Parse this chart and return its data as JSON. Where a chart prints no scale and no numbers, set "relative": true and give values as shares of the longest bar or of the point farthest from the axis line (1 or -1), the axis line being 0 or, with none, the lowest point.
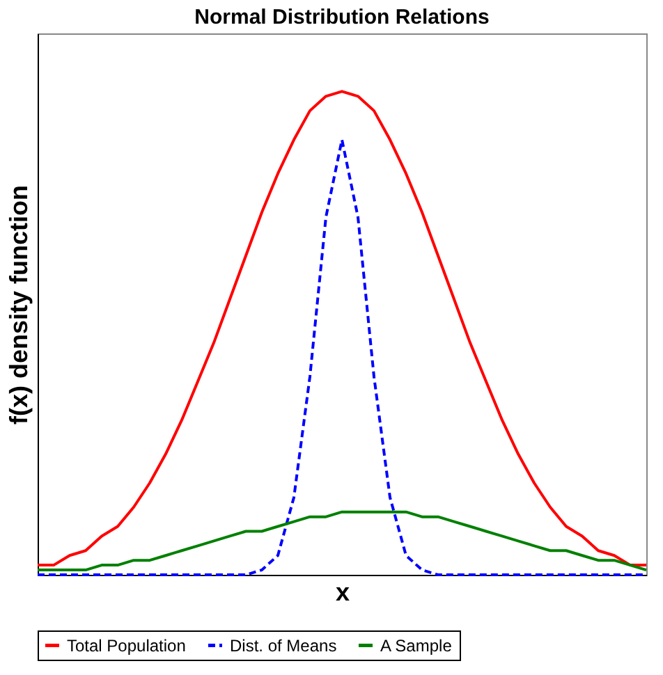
{
  "chart_data": {
    "type": "line",
    "title": "Normal Distribution Relations",
    "xlabel": "x",
    "ylabel": "f(x) density function",
    "relative": true,
    "grid": false,
    "legend": "bottom",
    "marker": "none",
    "line_style": "solid",
    "categories": [
      null,
      null,
      null,
      null,
      null,
      null,
      null,
      null,
      null,
      null,
      null,
      null,
      null,
      null,
      null,
      null,
      null,
      null,
      null,
      null,
      null,
      null,
      null,
      null,
      null,
      null,
      null,
      null,
      null,
      null,
      null,
      null,
      null,
      null,
      null,
      null,
      null,
      null,
      null
    ],
    "series": [
      {
        "name": "Total Population",
        "color": "#ff0000",
        "values": [
          0.02,
          0.02,
          0.04,
          0.05,
          0.08,
          0.1,
          0.14,
          0.19,
          0.25,
          0.32,
          0.4,
          0.48,
          0.57,
          0.66,
          0.75,
          0.83,
          0.9,
          0.96,
          0.99,
          1.0,
          0.99,
          0.96,
          0.9,
          0.83,
          0.75,
          0.66,
          0.57,
          0.48,
          0.4,
          0.32,
          0.25,
          0.19,
          0.14,
          0.1,
          0.08,
          0.05,
          0.04,
          0.02,
          0.02
        ]
      },
      {
        "name": "Dist. of Means",
        "color": "#0000ff",
        "line_style": "dashed",
        "values": [
          0,
          0,
          0,
          0,
          0,
          0,
          0,
          0,
          0,
          0,
          0,
          0,
          0,
          0,
          0.01,
          0.04,
          0.16,
          0.41,
          0.74,
          0.9,
          0.74,
          0.41,
          0.16,
          0.04,
          0.01,
          0,
          0,
          0,
          0,
          0,
          0,
          0,
          0,
          0,
          0,
          0,
          0,
          0,
          0
        ]
      },
      {
        "name": "A Sample",
        "color": "#008000",
        "values": [
          0.01,
          0.01,
          0.01,
          0.01,
          0.02,
          0.02,
          0.03,
          0.03,
          0.04,
          0.05,
          0.06,
          0.07,
          0.08,
          0.09,
          0.09,
          0.1,
          0.11,
          0.12,
          0.12,
          0.13,
          0.13,
          0.13,
          0.13,
          0.13,
          0.12,
          0.12,
          0.11,
          0.1,
          0.09,
          0.08,
          0.07,
          0.06,
          0.05,
          0.05,
          0.04,
          0.03,
          0.03,
          0.02,
          0.01
        ]
      }
    ]
  }
}
